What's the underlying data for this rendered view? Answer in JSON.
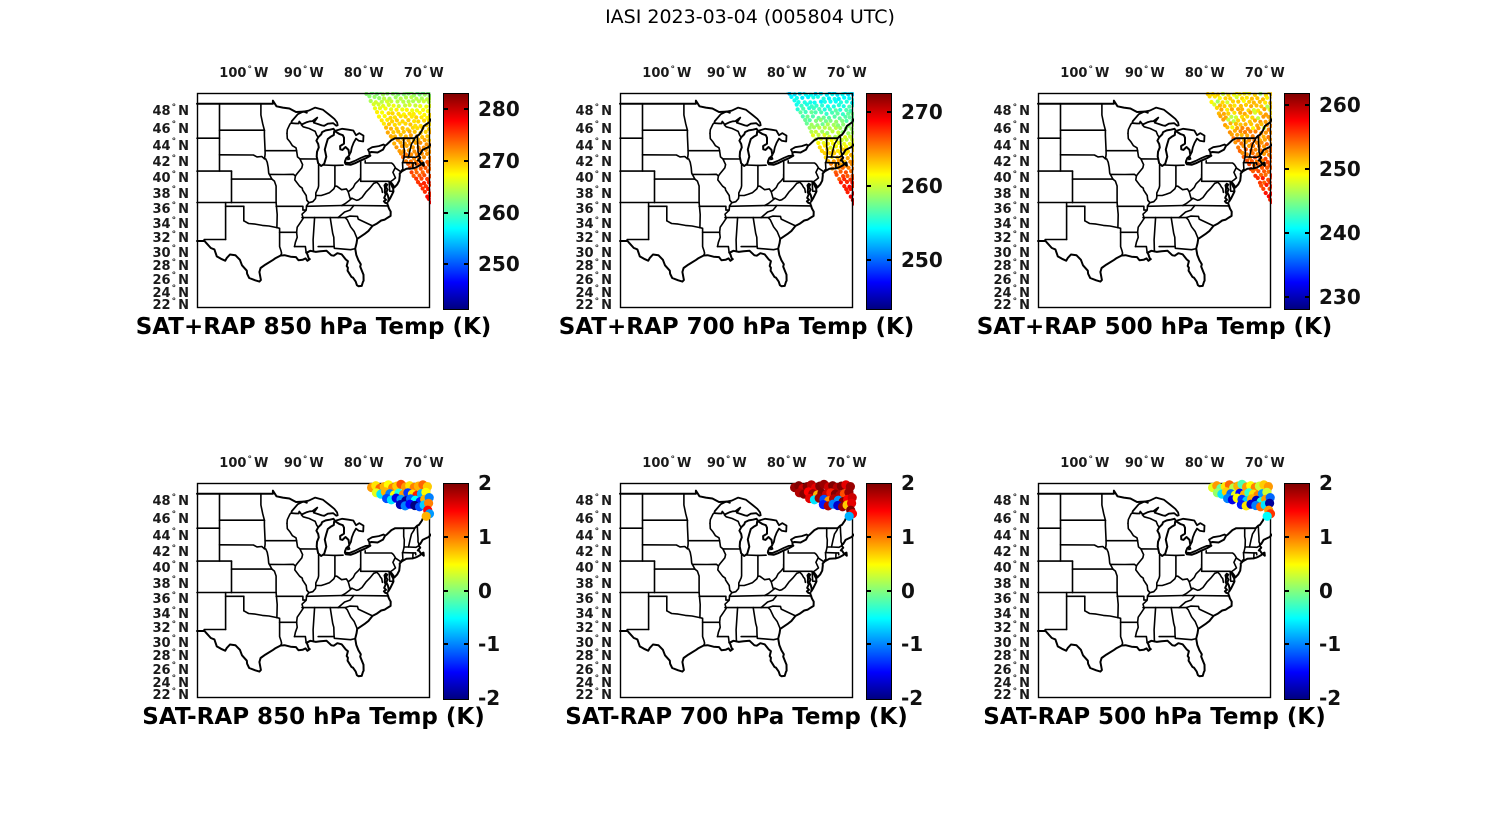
{
  "figure": {
    "title": "IASI 2023-03-04 (005804 UTC)",
    "background": "#ffffff"
  },
  "colormap": {
    "name": "jet",
    "stops_top_to_bottom": [
      "#800000",
      "#ff0000",
      "#ffff00",
      "#80ff80",
      "#00ffff",
      "#0000ff",
      "#000080"
    ]
  },
  "chart_data": {
    "type": "scatter",
    "description": "Six geographic scatter subplots over the eastern United States showing an IASI satellite sounding swath: top row = SAT+RAP retrieved temperature (K), bottom row = SAT-RAP temperature difference (K) at 850, 700 and 500 hPa.",
    "map_extent": {
      "lon_min": -107.8,
      "lon_max": -68.97,
      "lat_min": 21.8,
      "lat_max": 50.2
    },
    "axes": {
      "lon_ticks_deg_west": [
        100,
        90,
        80,
        70
      ],
      "lat_ticks_deg_north": [
        48,
        46,
        44,
        42,
        40,
        38,
        36,
        34,
        32,
        30,
        28,
        26,
        24,
        22
      ],
      "lon_suffix": "W",
      "lat_suffix": "N"
    },
    "marker": {
      "swath_dot_radius_px": 2.1,
      "diff_dot_radius_px": 4.6
    },
    "swath_geometry": {
      "origin_lat": 50.6,
      "origin_lon": -79.9,
      "along_track_dir_latlon": [
        -1.0,
        0.82
      ],
      "cross_track_dir_latlon": [
        0.82,
        1.0
      ],
      "along_track_deg": 13.9,
      "cross_track_deg": 12.0,
      "along_step_deg": 0.44,
      "cross_step_deg": 0.52,
      "jitter_deg": 0.24
    },
    "subplots": [
      {
        "id": "sat_plus_rap_850",
        "title": "SAT+RAP 850 hPa Temp (K)",
        "row": 1,
        "col": 1,
        "layer": "swath",
        "seed": 850,
        "colorbar_ticks": [
          280,
          270,
          260,
          250
        ],
        "colorbar_range_k": [
          241.6,
          283.1
        ],
        "value_model": {
          "base_k": 266.8,
          "base_lat": 49.5,
          "grad_k_per_deg_south": 0.9,
          "noise_k": 0.9,
          "cool_above_lat": 48.0,
          "cool_k_per_deg": 1.6
        }
      },
      {
        "id": "sat_plus_rap_700",
        "title": "SAT+RAP 700 hPa Temp (K)",
        "row": 1,
        "col": 2,
        "layer": "swath",
        "seed": 700,
        "colorbar_ticks": [
          270,
          260,
          250
        ],
        "colorbar_range_k": [
          243.5,
          272.6
        ],
        "value_model": {
          "base_k": 255.2,
          "base_lat": 49.0,
          "grad_k_per_deg_south": 1.3,
          "noise_k": 1.0
        }
      },
      {
        "id": "sat_plus_rap_500",
        "title": "SAT+RAP 500 hPa Temp (K)",
        "row": 1,
        "col": 3,
        "layer": "swath",
        "seed": 500,
        "colorbar_ticks": [
          260,
          250,
          240,
          230
        ],
        "colorbar_range_k": [
          228.3,
          261.9
        ],
        "value_model": {
          "base_k": 250.4,
          "base_lat": 49.5,
          "grad_k_per_deg_south": 0.55,
          "noise_k": 1.3,
          "patch_above_lat": 46.0,
          "patch_frac": 0.18,
          "patch_delta_k": -3.5
        }
      },
      {
        "id": "sat_minus_rap_850",
        "title": "SAT-RAP 850 hPa Temp (K)",
        "row": 2,
        "col": 1,
        "layer": "diff",
        "diff_key": "d850",
        "colorbar_ticks": [
          2,
          1,
          0,
          -1,
          -2
        ],
        "colorbar_range_k": [
          -2,
          2
        ]
      },
      {
        "id": "sat_minus_rap_700",
        "title": "SAT-RAP 700 hPa Temp (K)",
        "row": 2,
        "col": 2,
        "layer": "diff",
        "diff_key": "d700",
        "colorbar_ticks": [
          2,
          1,
          0,
          -1,
          -2
        ],
        "colorbar_range_k": [
          -2,
          2
        ]
      },
      {
        "id": "sat_minus_rap_500",
        "title": "SAT-RAP 500 hPa Temp (K)",
        "row": 2,
        "col": 3,
        "layer": "diff",
        "diff_key": "d500",
        "colorbar_ticks": [
          2,
          1,
          0,
          -1,
          -2
        ],
        "colorbar_range_k": [
          -2,
          2
        ]
      }
    ],
    "diff_points": {
      "lon": [
        -78.7,
        -78.0,
        -77.3,
        -76.6,
        -75.9,
        -75.2,
        -74.5,
        -73.8,
        -73.05,
        -72.35,
        -71.6,
        -70.9,
        -70.15,
        -69.4,
        -77.9,
        -77.15,
        -76.4,
        -75.65,
        -74.9,
        -74.15,
        -73.4,
        -72.65,
        -71.9,
        -71.15,
        -70.4,
        -69.65,
        -76.2,
        -75.4,
        -74.6,
        -73.8,
        -73.0,
        -72.2,
        -71.4,
        -70.6,
        -69.85,
        -69.1,
        -73.9,
        -73.1,
        -72.3,
        -71.5,
        -70.7,
        -69.95,
        -69.2,
        -69.35,
        -69.05,
        -69.6
      ],
      "lat": [
        49.7,
        49.9,
        49.6,
        49.8,
        50.0,
        49.65,
        49.85,
        50.05,
        49.75,
        49.9,
        49.7,
        49.85,
        50.0,
        49.8,
        49.1,
        48.95,
        49.2,
        49.0,
        48.85,
        49.05,
        48.9,
        49.1,
        48.95,
        48.8,
        49.0,
        49.15,
        48.45,
        48.3,
        48.5,
        48.35,
        48.2,
        48.4,
        48.25,
        48.1,
        48.35,
        48.55,
        47.75,
        47.6,
        47.8,
        47.65,
        47.5,
        47.7,
        47.9,
        47.1,
        46.7,
        46.4
      ],
      "d850": [
        0.9,
        0.6,
        1.1,
        0.8,
        0.5,
        1.0,
        0.7,
        1.2,
        0.9,
        0.6,
        1.0,
        0.8,
        1.1,
        0.7,
        0.4,
        -0.6,
        0.8,
        -1.0,
        0.5,
        -0.4,
        0.9,
        -1.3,
        0.6,
        1.4,
        -0.8,
        0.5,
        -1.2,
        -0.6,
        -1.6,
        -0.9,
        -1.9,
        -1.1,
        -0.5,
        -1.4,
        0.8,
        -1.0,
        -1.8,
        -1.0,
        -1.5,
        -2.0,
        -1.2,
        -0.7,
        1.0,
        1.5,
        -0.9,
        0.8
      ],
      "d700": [
        1.9,
        2.0,
        1.7,
        2.0,
        1.8,
        1.6,
        2.0,
        1.9,
        1.7,
        2.0,
        1.8,
        2.0,
        1.6,
        1.9,
        1.8,
        2.0,
        1.5,
        1.9,
        0.8,
        2.0,
        1.7,
        1.4,
        2.0,
        1.8,
        1.2,
        1.9,
        1.6,
        -0.6,
        1.9,
        -1.2,
        0.9,
        1.8,
        -0.9,
        2.0,
        1.5,
        1.7,
        -1.4,
        1.8,
        -1.0,
        -1.7,
        1.9,
        0.7,
        1.6,
        2.0,
        1.5,
        -0.8
      ],
      "d500": [
        0.4,
        0.9,
        -0.1,
        0.6,
        1.1,
        0.2,
        0.8,
        -0.2,
        0.9,
        0.5,
        1.0,
        0.3,
        0.7,
        0.9,
        0.1,
        -0.6,
        0.7,
        -1.1,
        0.4,
        -1.5,
        0.8,
        -0.3,
        0.6,
        1.0,
        -0.9,
        0.3,
        -1.0,
        -1.6,
        0.5,
        -1.3,
        -0.7,
        0.8,
        -1.8,
        -0.4,
        0.9,
        -1.1,
        -1.4,
        0.6,
        -1.7,
        -1.0,
        1.1,
        -0.6,
        -1.9,
        0.9,
        1.3,
        -0.5
      ]
    }
  }
}
